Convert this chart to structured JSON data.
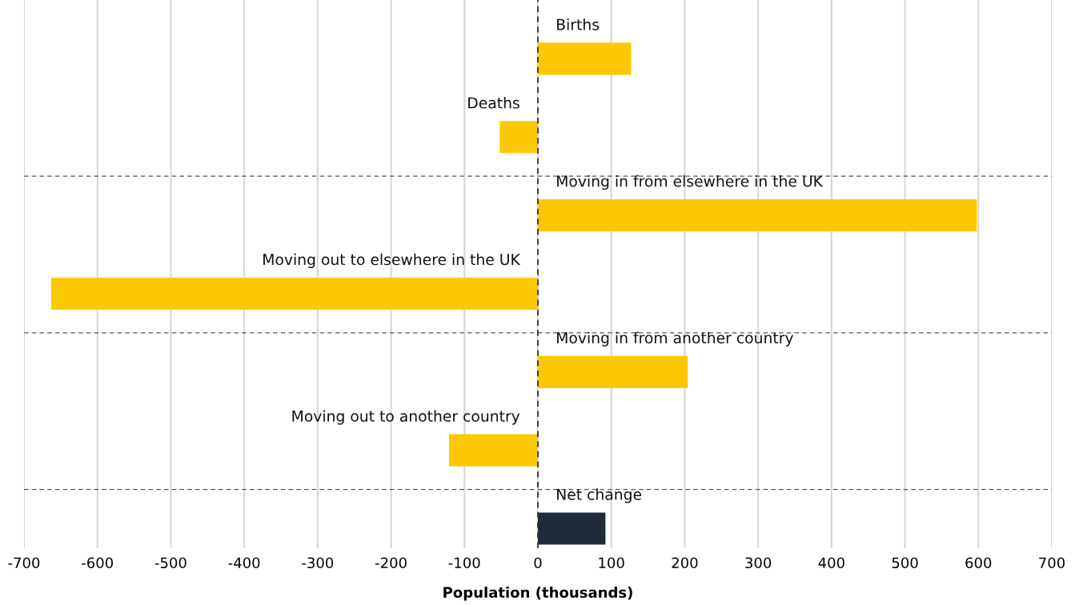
{
  "chart_data": {
    "type": "bar",
    "orientation": "horizontal",
    "xlabel": "Population (thousands)",
    "categories": [
      "Births",
      "Deaths",
      "Moving in from elsewhere in the UK",
      "Moving out to elsewhere in the UK",
      "Moving in from another country",
      "Moving out to another country",
      "Net change"
    ],
    "values": [
      127,
      -52,
      598,
      -663,
      204,
      -121,
      92
    ],
    "colors": [
      "#fdc806",
      "#fdc806",
      "#fdc806",
      "#fdc806",
      "#fdc806",
      "#fdc806",
      "#1f2a3a"
    ],
    "xlim": [
      -700,
      700
    ],
    "xticks": [
      -700,
      -600,
      -500,
      -400,
      -300,
      -200,
      -100,
      0,
      100,
      200,
      300,
      400,
      500,
      600,
      700
    ],
    "grid": "x",
    "tick_labels": "x",
    "ref_lines": [
      {
        "axis": "x",
        "value": 0,
        "color": "#333333",
        "line_style": "dashed"
      }
    ]
  }
}
